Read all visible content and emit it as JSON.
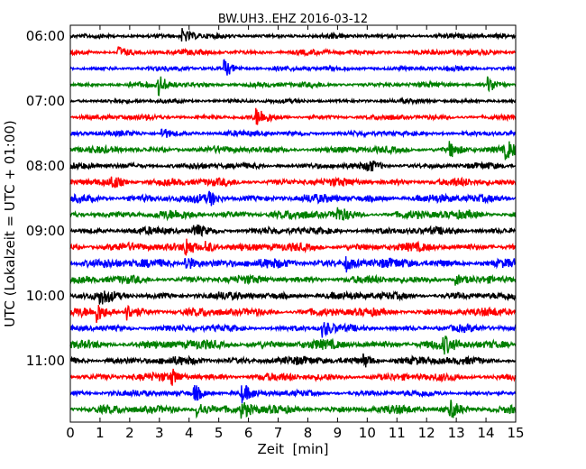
{
  "chart_data": {
    "type": "line",
    "title": "BW.UH3..EHZ 2016-03-12",
    "xlabel": "Zeit  [min]",
    "ylabel": "UTC (Lokalzeit = UTC + 01:00)",
    "xlim": [
      0,
      15
    ],
    "x_ticks": [
      "0",
      "1",
      "2",
      "3",
      "4",
      "5",
      "6",
      "7",
      "8",
      "9",
      "10",
      "11",
      "12",
      "13",
      "14",
      "15"
    ],
    "y_ticks": [
      "06:00",
      "07:00",
      "08:00",
      "09:00",
      "10:00",
      "11:00"
    ],
    "trace_interval_min": 15,
    "start_time": "06:00",
    "end_time": "11:45",
    "colors_cycle": [
      "#000000",
      "#ff0000",
      "#0000ff",
      "#008000"
    ],
    "series": [
      {
        "start": "06:00",
        "color": "#000000",
        "amplitude": 0.45,
        "events": [
          {
            "minute": 3.8,
            "amp": 1.4
          }
        ]
      },
      {
        "start": "06:15",
        "color": "#ff0000",
        "amplitude": 0.5,
        "events": [
          {
            "minute": 1.6,
            "amp": 1.3
          }
        ]
      },
      {
        "start": "06:30",
        "color": "#0000ff",
        "amplitude": 0.45,
        "events": [
          {
            "minute": 5.2,
            "amp": 1.6
          }
        ]
      },
      {
        "start": "06:45",
        "color": "#008000",
        "amplitude": 0.5,
        "events": [
          {
            "minute": 3.0,
            "amp": 1.8
          },
          {
            "minute": 14.1,
            "amp": 1.4
          }
        ]
      },
      {
        "start": "07:00",
        "color": "#000000",
        "amplitude": 0.4,
        "events": []
      },
      {
        "start": "07:15",
        "color": "#ff0000",
        "amplitude": 0.5,
        "events": [
          {
            "minute": 6.3,
            "amp": 1.5
          }
        ]
      },
      {
        "start": "07:30",
        "color": "#0000ff",
        "amplitude": 0.5,
        "events": [
          {
            "minute": 3.1,
            "amp": 1.2
          }
        ]
      },
      {
        "start": "07:45",
        "color": "#008000",
        "amplitude": 0.65,
        "events": [
          {
            "minute": 12.8,
            "amp": 1.3
          },
          {
            "minute": 14.7,
            "amp": 1.5
          }
        ]
      },
      {
        "start": "08:00",
        "color": "#000000",
        "amplitude": 0.6,
        "events": [
          {
            "minute": 10.0,
            "amp": 1.1
          }
        ]
      },
      {
        "start": "08:15",
        "color": "#ff0000",
        "amplitude": 0.75,
        "events": [
          {
            "minute": 1.4,
            "amp": 1.3
          }
        ]
      },
      {
        "start": "08:30",
        "color": "#0000ff",
        "amplitude": 0.8,
        "events": [
          {
            "minute": 4.7,
            "amp": 1.1
          }
        ]
      },
      {
        "start": "08:45",
        "color": "#008000",
        "amplitude": 0.85,
        "events": [
          {
            "minute": 9.0,
            "amp": 1.2
          }
        ]
      },
      {
        "start": "09:00",
        "color": "#000000",
        "amplitude": 0.7,
        "events": [
          {
            "minute": 4.2,
            "amp": 1.2
          }
        ]
      },
      {
        "start": "09:15",
        "color": "#ff0000",
        "amplitude": 0.8,
        "events": [
          {
            "minute": 3.9,
            "amp": 1.7
          },
          {
            "minute": 4.6,
            "amp": 1.3
          }
        ]
      },
      {
        "start": "09:30",
        "color": "#0000ff",
        "amplitude": 0.9,
        "events": [
          {
            "minute": 3.9,
            "amp": 1.8
          },
          {
            "minute": 9.3,
            "amp": 1.4
          }
        ]
      },
      {
        "start": "09:45",
        "color": "#008000",
        "amplitude": 0.75,
        "events": [
          {
            "minute": 13.0,
            "amp": 1.1
          }
        ]
      },
      {
        "start": "10:00",
        "color": "#000000",
        "amplitude": 0.75,
        "events": [
          {
            "minute": 1.0,
            "amp": 1.3
          }
        ]
      },
      {
        "start": "10:15",
        "color": "#ff0000",
        "amplitude": 0.8,
        "events": [
          {
            "minute": 0.9,
            "amp": 1.6
          },
          {
            "minute": 1.9,
            "amp": 1.3
          }
        ]
      },
      {
        "start": "10:30",
        "color": "#0000ff",
        "amplitude": 0.65,
        "events": [
          {
            "minute": 8.5,
            "amp": 1.5
          }
        ]
      },
      {
        "start": "10:45",
        "color": "#008000",
        "amplitude": 0.9,
        "events": [
          {
            "minute": 12.6,
            "amp": 1.1
          }
        ]
      },
      {
        "start": "11:00",
        "color": "#000000",
        "amplitude": 0.8,
        "events": [
          {
            "minute": 9.9,
            "amp": 1.2
          }
        ]
      },
      {
        "start": "11:15",
        "color": "#ff0000",
        "amplitude": 0.75,
        "events": [
          {
            "minute": 3.4,
            "amp": 1.4
          }
        ]
      },
      {
        "start": "11:30",
        "color": "#0000ff",
        "amplitude": 0.6,
        "events": [
          {
            "minute": 4.2,
            "amp": 1.5
          },
          {
            "minute": 5.8,
            "amp": 1.5
          }
        ]
      },
      {
        "start": "11:45",
        "color": "#008000",
        "amplitude": 0.8,
        "events": [
          {
            "minute": 4.3,
            "amp": 1.6
          },
          {
            "minute": 5.8,
            "amp": 1.5
          },
          {
            "minute": 12.8,
            "amp": 1.7
          }
        ]
      }
    ]
  }
}
